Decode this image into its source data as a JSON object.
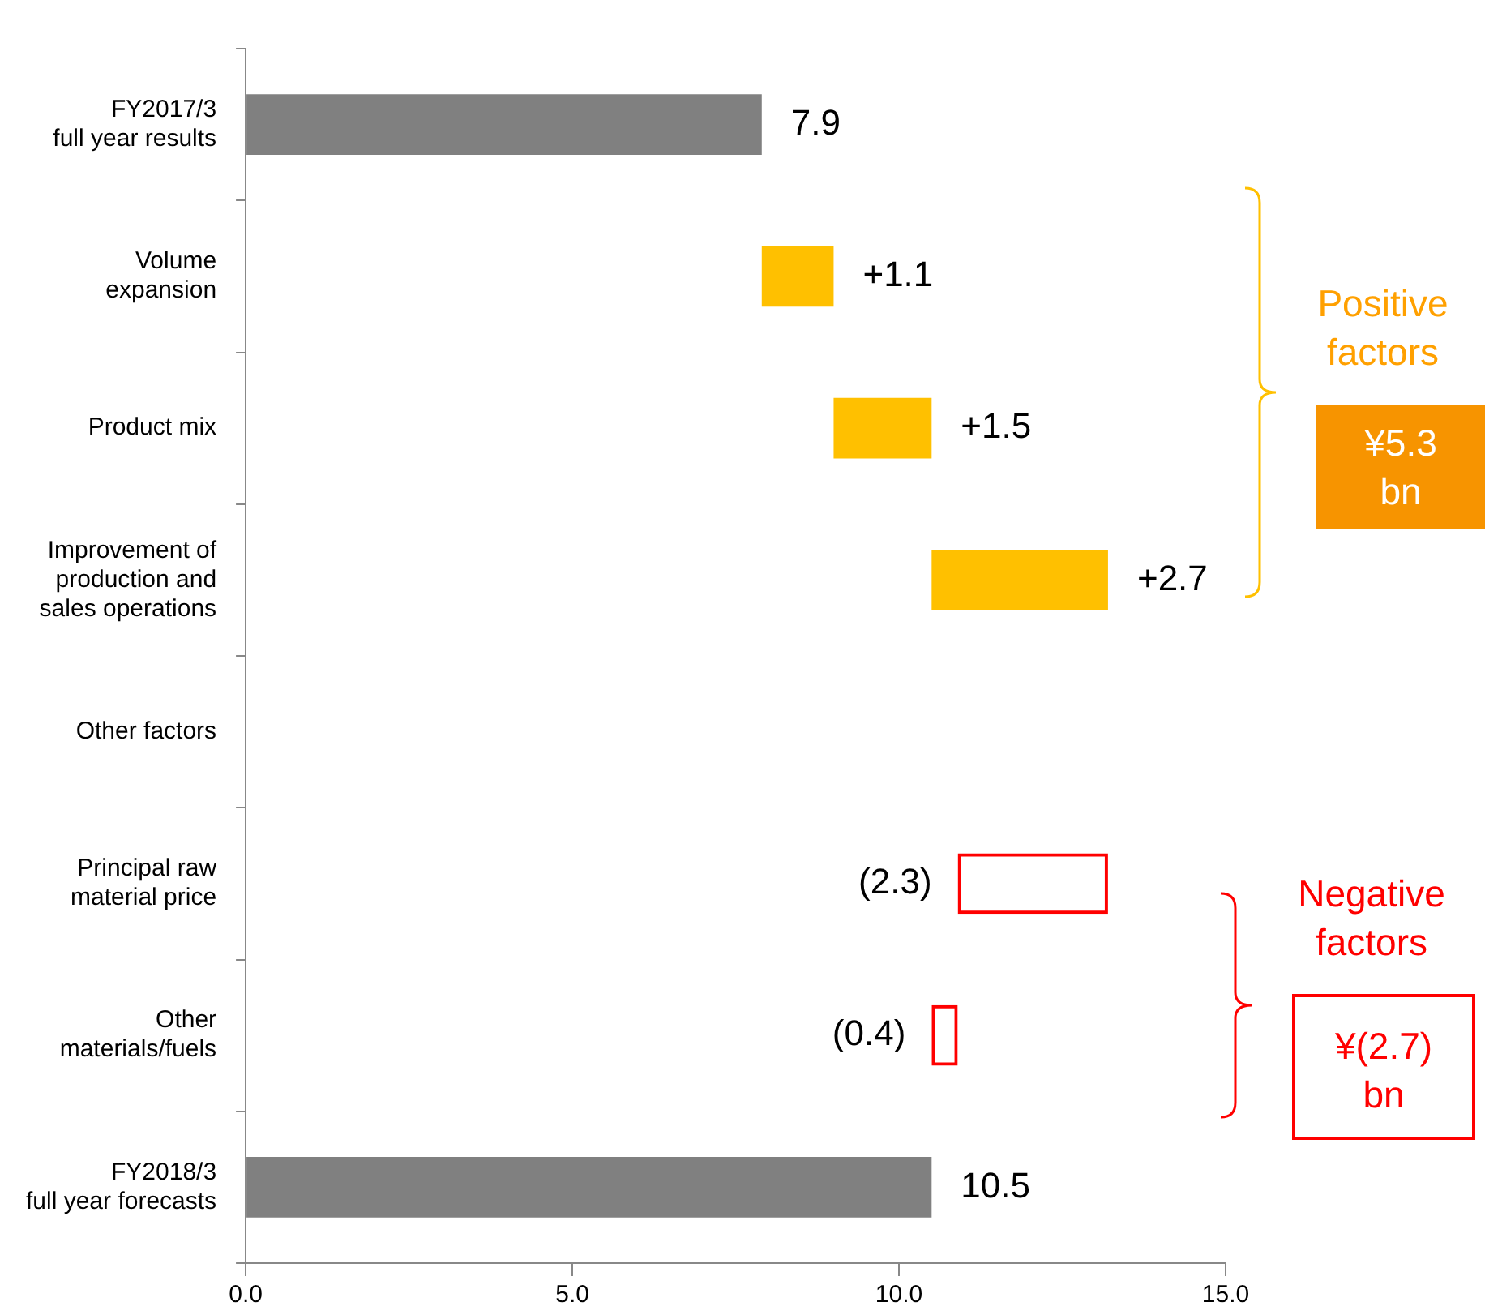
{
  "chart_data": {
    "type": "bar",
    "orientation": "horizontal",
    "categories": [
      "FY2017/3\nfull year results",
      "Volume\nexpansion",
      "Product mix",
      "Improvement of\nproduction and\nsales operations",
      "Other factors",
      "Principal raw\nmaterial price",
      "Other\nmaterials/fuels",
      "FY2018/3\nfull year forecasts"
    ],
    "values": [
      7.9,
      1.1,
      1.5,
      2.7,
      null,
      -2.3,
      -0.4,
      10.5
    ],
    "base": [
      0,
      7.9,
      9.0,
      10.5,
      null,
      13.2,
      10.9,
      0
    ],
    "colors": [
      "#808080",
      "#ffc000",
      "#ffc000",
      "#ffc000",
      "#ffc000",
      "#ff0000",
      "#ff0000",
      "#808080"
    ],
    "value_labels": [
      "7.9",
      "+1.1",
      "+1.5",
      "+2.7",
      null,
      "(2.3)",
      "(0.4)",
      "10.5"
    ],
    "xlim": [
      0,
      15
    ],
    "xticks": [
      {
        "value": 0,
        "label": "0.0"
      },
      {
        "value": 5,
        "label": "5.0"
      },
      {
        "value": 10,
        "label": "10.0"
      },
      {
        "value": 15,
        "label": "15.0"
      }
    ],
    "grid": false,
    "legend": false,
    "annotations": [
      "Positive factors",
      "¥5.3 bn",
      "Negative factors",
      "¥(2.7) bn"
    ]
  }
}
